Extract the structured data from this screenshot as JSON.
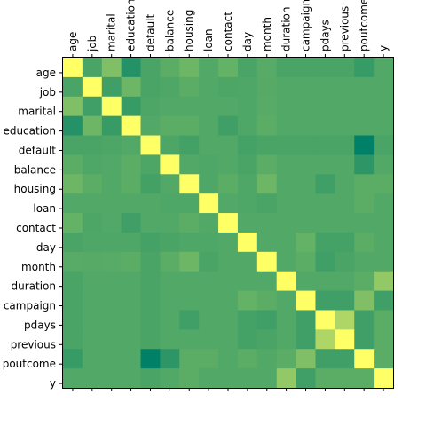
{
  "chart_data": {
    "type": "heatmap",
    "title": "",
    "xlabel": "",
    "ylabel": "",
    "x_axis_position": "top",
    "colormap": "summer",
    "color_range": [
      -0.4,
      1.0
    ],
    "labels": [
      "age",
      "job",
      "marital",
      "education",
      "default",
      "balance",
      "housing",
      "loan",
      "contact",
      "day",
      "month",
      "duration",
      "campaign",
      "pdays",
      "previous",
      "poutcome",
      "y"
    ],
    "matrix": [
      [
        1.0,
        0.0,
        0.3,
        -0.2,
        0.0,
        0.1,
        0.2,
        0.05,
        0.15,
        0.0,
        0.08,
        0.0,
        0.0,
        0.0,
        0.0,
        -0.1,
        0.05
      ],
      [
        0.0,
        1.0,
        -0.05,
        0.2,
        0.0,
        0.03,
        0.1,
        0.05,
        0.02,
        0.03,
        0.07,
        0.05,
        0.05,
        0.05,
        0.05,
        0.05,
        0.05
      ],
      [
        0.3,
        -0.05,
        1.0,
        -0.1,
        0.02,
        0.05,
        0.05,
        0.05,
        0.05,
        0.03,
        0.08,
        0.05,
        0.05,
        0.05,
        0.05,
        0.05,
        0.05
      ],
      [
        -0.2,
        0.2,
        -0.1,
        1.0,
        0.05,
        0.1,
        0.1,
        0.05,
        -0.05,
        0.03,
        0.1,
        0.05,
        0.05,
        0.05,
        0.05,
        0.05,
        0.05
      ],
      [
        0.0,
        0.0,
        0.02,
        0.05,
        1.0,
        0.02,
        -0.03,
        0.05,
        0.05,
        -0.02,
        0.0,
        0.0,
        0.0,
        0.0,
        0.0,
        -0.4,
        0.0
      ],
      [
        0.1,
        0.03,
        0.05,
        0.1,
        0.02,
        1.0,
        0.05,
        0.03,
        0.05,
        0.0,
        0.1,
        0.05,
        0.05,
        0.05,
        0.05,
        -0.15,
        0.05
      ],
      [
        0.2,
        0.1,
        0.05,
        0.1,
        -0.03,
        0.05,
        1.0,
        0.03,
        0.1,
        0.03,
        0.2,
        0.05,
        0.05,
        -0.05,
        0.05,
        0.1,
        0.1
      ],
      [
        0.05,
        0.05,
        0.05,
        0.05,
        0.05,
        0.03,
        0.03,
        1.0,
        0.05,
        0.03,
        0.0,
        0.05,
        0.05,
        0.05,
        0.05,
        0.1,
        0.05
      ],
      [
        0.15,
        0.02,
        0.05,
        -0.05,
        0.05,
        0.05,
        0.1,
        0.05,
        1.0,
        0.05,
        0.05,
        0.05,
        0.05,
        0.05,
        0.05,
        0.05,
        0.05
      ],
      [
        0.0,
        0.03,
        0.03,
        0.03,
        -0.02,
        0.0,
        0.03,
        0.03,
        0.05,
        1.0,
        0.05,
        0.05,
        0.15,
        -0.02,
        -0.02,
        0.1,
        0.05
      ],
      [
        0.08,
        0.07,
        0.08,
        0.1,
        0.0,
        0.1,
        0.2,
        0.0,
        0.05,
        0.05,
        1.0,
        0.05,
        0.1,
        -0.05,
        0.0,
        0.05,
        0.05
      ],
      [
        0.0,
        0.05,
        0.05,
        0.05,
        0.0,
        0.05,
        0.05,
        0.05,
        0.05,
        0.05,
        0.05,
        1.0,
        0.05,
        0.05,
        0.05,
        0.1,
        0.4
      ],
      [
        0.0,
        0.05,
        0.05,
        0.05,
        0.0,
        0.05,
        0.05,
        0.05,
        0.05,
        0.15,
        0.1,
        0.05,
        1.0,
        -0.05,
        -0.05,
        0.3,
        -0.05
      ],
      [
        0.0,
        0.05,
        0.05,
        0.05,
        0.0,
        0.05,
        -0.05,
        0.05,
        0.05,
        -0.02,
        -0.05,
        0.05,
        -0.05,
        1.0,
        0.55,
        -0.05,
        0.1
      ],
      [
        0.0,
        0.05,
        0.05,
        0.05,
        0.0,
        0.05,
        0.05,
        0.05,
        0.05,
        -0.02,
        0.0,
        0.05,
        -0.05,
        0.55,
        1.0,
        -0.05,
        0.1
      ],
      [
        -0.1,
        0.05,
        0.05,
        0.05,
        -0.4,
        -0.15,
        0.1,
        0.1,
        0.05,
        0.1,
        0.05,
        0.1,
        0.3,
        -0.05,
        -0.05,
        1.0,
        0.1
      ],
      [
        0.05,
        0.05,
        0.05,
        0.05,
        0.0,
        0.05,
        0.1,
        0.05,
        0.05,
        0.05,
        0.05,
        0.4,
        -0.05,
        0.1,
        0.1,
        0.1,
        1.0
      ]
    ]
  }
}
